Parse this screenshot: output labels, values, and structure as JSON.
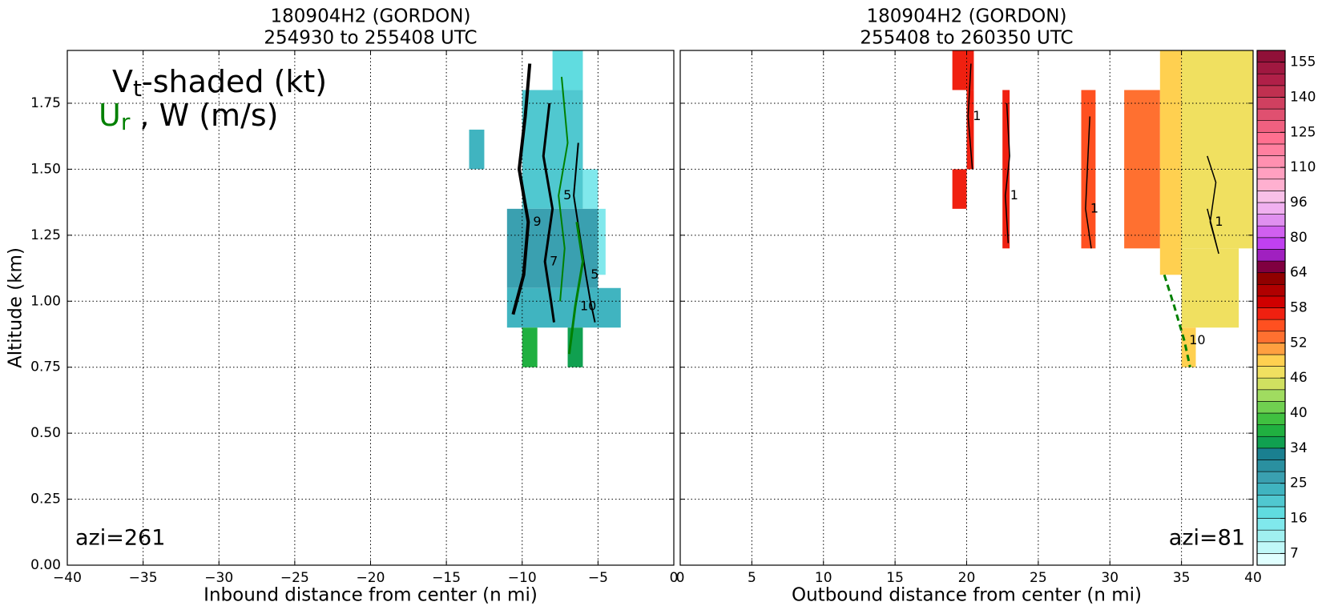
{
  "chart_data": [
    {
      "type": "contour",
      "title_lines": [
        "180904H2 (GORDON)",
        "254930 to 255408 UTC"
      ],
      "xlabel": "Inbound distance from center (n mi)",
      "ylabel": "Altitude (km)",
      "xlim": [
        -40,
        0
      ],
      "xticks": [
        {
          "value": -40,
          "label": "−40"
        },
        {
          "value": -35,
          "label": "−35"
        },
        {
          "value": -30,
          "label": "−30"
        },
        {
          "value": -25,
          "label": "−25"
        },
        {
          "value": -20,
          "label": "−20"
        },
        {
          "value": -15,
          "label": "−15"
        },
        {
          "value": -10,
          "label": "−10"
        },
        {
          "value": -5,
          "label": "−5"
        },
        0
      ],
      "ylim": [
        0,
        1.95
      ],
      "yticks": [
        {
          "value": 0,
          "label": "0.00"
        },
        {
          "value": 0.25,
          "label": "0.25"
        },
        {
          "value": 0.5,
          "label": "0.50"
        },
        {
          "value": 0.75,
          "label": "0.75"
        },
        {
          "value": 1,
          "label": "1.00"
        },
        {
          "value": 1.25,
          "label": "1.25"
        },
        {
          "value": 1.5,
          "label": "1.50"
        },
        {
          "value": 1.75,
          "label": "1.75"
        }
      ],
      "grid": true,
      "legend_lines": [
        [
          "V",
          "t",
          "-shaded (kt)"
        ],
        [
          "U",
          "r",
          " , W (m/s)"
        ]
      ],
      "annotation": "azi=261",
      "cells": [
        {
          "x": [
            -13.5,
            -12.5
          ],
          "y": [
            1.5,
            1.65
          ],
          "value": 22
        },
        {
          "x": [
            -10,
            -6
          ],
          "y": [
            1.35,
            1.8
          ],
          "value": 20
        },
        {
          "x": [
            -8,
            -6
          ],
          "y": [
            1.8,
            1.95
          ],
          "value": 17
        },
        {
          "x": [
            -6,
            -5
          ],
          "y": [
            1.35,
            1.5
          ],
          "value": 14
        },
        {
          "x": [
            -11,
            -5
          ],
          "y": [
            1.05,
            1.35
          ],
          "value": 26
        },
        {
          "x": [
            -5,
            -4.5
          ],
          "y": [
            1.1,
            1.35
          ],
          "value": 14
        },
        {
          "x": [
            -11,
            -3.5
          ],
          "y": [
            0.9,
            1.05
          ],
          "value": 24
        },
        {
          "x": [
            -10,
            -9
          ],
          "y": [
            0.75,
            0.9
          ],
          "value": 37
        },
        {
          "x": [
            -7,
            -6
          ],
          "y": [
            0.75,
            0.9
          ],
          "value": 35
        }
      ],
      "contours": [
        {
          "name": "9",
          "color": "#000000",
          "width": 4,
          "x": [
            -9.5,
            -9.8,
            -10.2,
            -9.6,
            -9.9,
            -10.6
          ],
          "y": [
            1.9,
            1.7,
            1.5,
            1.3,
            1.1,
            0.95
          ]
        },
        {
          "name": "7",
          "color": "#000000",
          "width": 3,
          "x": [
            -8.2,
            -8.6,
            -8.0,
            -8.5,
            -8.1,
            -7.9
          ],
          "y": [
            1.75,
            1.55,
            1.35,
            1.15,
            1.0,
            0.92
          ]
        },
        {
          "name": "5",
          "color": "#000000",
          "width": 2,
          "x": [
            -6.3,
            -6.6,
            -6.2,
            -5.8,
            -5.5,
            -5.2
          ],
          "y": [
            1.6,
            1.4,
            1.25,
            1.1,
            1.0,
            0.92
          ]
        },
        {
          "name": "5",
          "color": "#008000",
          "width": 2,
          "x": [
            -7.4,
            -7.0,
            -7.6,
            -7.2,
            -7.5
          ],
          "y": [
            1.85,
            1.6,
            1.4,
            1.2,
            1.0
          ]
        },
        {
          "name": "10",
          "color": "#008000",
          "width": 3,
          "x": [
            -6.4,
            -6.0,
            -6.5,
            -6.9
          ],
          "y": [
            1.3,
            1.15,
            0.98,
            0.8
          ]
        }
      ]
    },
    {
      "type": "contour",
      "title_lines": [
        "180904H2 (GORDON)",
        "255408 to 260350 UTC"
      ],
      "xlabel": "Outbound distance from center (n mi)",
      "xlim": [
        0,
        40
      ],
      "xticks": [
        0,
        5,
        10,
        15,
        20,
        25,
        30,
        35,
        40
      ],
      "ylim": [
        0,
        1.95
      ],
      "grid": true,
      "annotation": "azi=81",
      "cells": [
        {
          "x": [
            19,
            20.5
          ],
          "y": [
            1.8,
            1.95
          ],
          "value": 57
        },
        {
          "x": [
            20,
            20.5
          ],
          "y": [
            1.5,
            1.8
          ],
          "value": 57
        },
        {
          "x": [
            19,
            20
          ],
          "y": [
            1.35,
            1.5
          ],
          "value": 57
        },
        {
          "x": [
            22.5,
            23
          ],
          "y": [
            1.2,
            1.8
          ],
          "value": 57
        },
        {
          "x": [
            28,
            29
          ],
          "y": [
            1.2,
            1.8
          ],
          "value": 55
        },
        {
          "x": [
            31,
            33.5
          ],
          "y": [
            1.2,
            1.8
          ],
          "value": 52
        },
        {
          "x": [
            33.5,
            35
          ],
          "y": [
            1.1,
            1.95
          ],
          "value": 49
        },
        {
          "x": [
            35,
            40
          ],
          "y": [
            1.2,
            1.95
          ],
          "value": 46
        },
        {
          "x": [
            35,
            39
          ],
          "y": [
            0.9,
            1.2
          ],
          "value": 47
        },
        {
          "x": [
            35,
            36
          ],
          "y": [
            0.75,
            0.9
          ],
          "value": 49
        }
      ],
      "contours": [
        {
          "name": "1",
          "color": "#000000",
          "width": 1.5,
          "x": [
            20.3,
            20.1,
            20.4
          ],
          "y": [
            1.9,
            1.7,
            1.5
          ]
        },
        {
          "name": "1",
          "color": "#000000",
          "width": 1.5,
          "x": [
            22.8,
            23.0,
            22.7,
            22.9
          ],
          "y": [
            1.75,
            1.55,
            1.4,
            1.22
          ]
        },
        {
          "name": "1",
          "color": "#000000",
          "width": 1.5,
          "x": [
            28.6,
            28.3,
            28.7
          ],
          "y": [
            1.7,
            1.35,
            1.2
          ]
        },
        {
          "name": "1",
          "color": "#000000",
          "width": 1.5,
          "x": [
            36.8,
            37.4,
            37.0,
            37.6,
            36.8
          ],
          "y": [
            1.55,
            1.45,
            1.3,
            1.18,
            1.35
          ]
        },
        {
          "name": "10",
          "color": "#008000",
          "width": 3,
          "dash": true,
          "x": [
            33.8,
            34.5,
            35.2,
            35.6
          ],
          "y": [
            1.1,
            0.98,
            0.85,
            0.75
          ]
        }
      ],
      "colorbar": {
        "levels": [
          4,
          7,
          10,
          13,
          16,
          19,
          22,
          25,
          28,
          31,
          34,
          36,
          38,
          40,
          42,
          44,
          46,
          48,
          50,
          52,
          54,
          56,
          58,
          60,
          62,
          64,
          69,
          75,
          80,
          85,
          91,
          96,
          101,
          106,
          110,
          115,
          120,
          125,
          130,
          135,
          140,
          145,
          150,
          155,
          160
        ],
        "colors": [
          "#e0ffff",
          "#c0f8f8",
          "#a0f0f0",
          "#80e8ec",
          "#60dce0",
          "#50c8d0",
          "#40b4c0",
          "#3aa0b0",
          "#2a90a0",
          "#1a8090",
          "#10a050",
          "#20b040",
          "#40c040",
          "#70d050",
          "#a0dc60",
          "#d0e060",
          "#f0e060",
          "#ffd050",
          "#ffa040",
          "#ff7030",
          "#ff5020",
          "#f02010",
          "#d00000",
          "#b00000",
          "#900000",
          "#800040",
          "#a020c0",
          "#c040f0",
          "#d060f0",
          "#e090f0",
          "#f0b0f0",
          "#f8c0e8",
          "#ffb0d0",
          "#ffa0c0",
          "#ff90b0",
          "#ff80a0",
          "#ff7090",
          "#f06080",
          "#e05070",
          "#d04060",
          "#c03050",
          "#b02048",
          "#a01840",
          "#901038"
        ],
        "ticks": [
          7,
          16,
          25,
          34,
          40,
          46,
          52,
          58,
          64,
          80,
          96,
          110,
          125,
          140,
          155
        ]
      }
    }
  ]
}
